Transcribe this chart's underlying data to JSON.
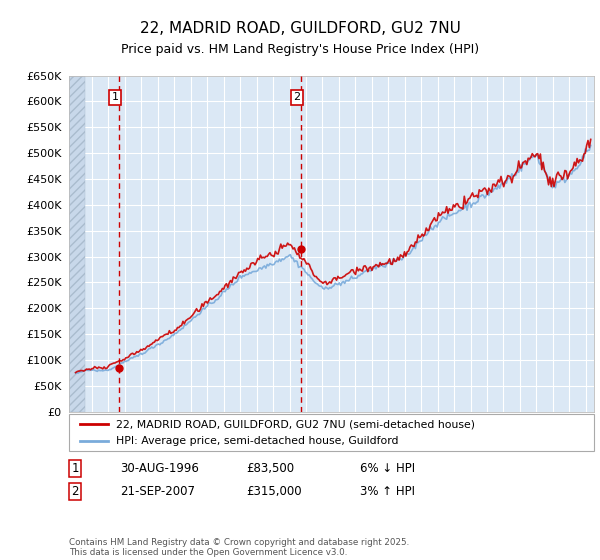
{
  "title": "22, MADRID ROAD, GUILDFORD, GU2 7NU",
  "subtitle": "Price paid vs. HM Land Registry's House Price Index (HPI)",
  "ylim": [
    0,
    650000
  ],
  "yticks": [
    0,
    50000,
    100000,
    150000,
    200000,
    250000,
    300000,
    350000,
    400000,
    450000,
    500000,
    550000,
    600000,
    650000
  ],
  "ytick_labels": [
    "£0",
    "£50K",
    "£100K",
    "£150K",
    "£200K",
    "£250K",
    "£300K",
    "£350K",
    "£400K",
    "£450K",
    "£500K",
    "£550K",
    "£600K",
    "£650K"
  ],
  "bg_color": "#dbe8f5",
  "grid_color": "#ffffff",
  "sale1_x": 1996.66,
  "sale1_y": 83500,
  "sale2_x": 2007.72,
  "sale2_y": 315000,
  "sale1_label": "30-AUG-1996",
  "sale2_label": "21-SEP-2007",
  "sale1_price": "£83,500",
  "sale2_price": "£315,000",
  "sale1_hpi": "6% ↓ HPI",
  "sale2_hpi": "3% ↑ HPI",
  "legend_line1": "22, MADRID ROAD, GUILDFORD, GU2 7NU (semi-detached house)",
  "legend_line2": "HPI: Average price, semi-detached house, Guildford",
  "footnote": "Contains HM Land Registry data © Crown copyright and database right 2025.\nThis data is licensed under the Open Government Licence v3.0.",
  "line_color_red": "#cc0000",
  "line_color_blue": "#7aabdb",
  "xlim_left": 1993.6,
  "xlim_right": 2025.5,
  "hatch_end": 1994.55
}
